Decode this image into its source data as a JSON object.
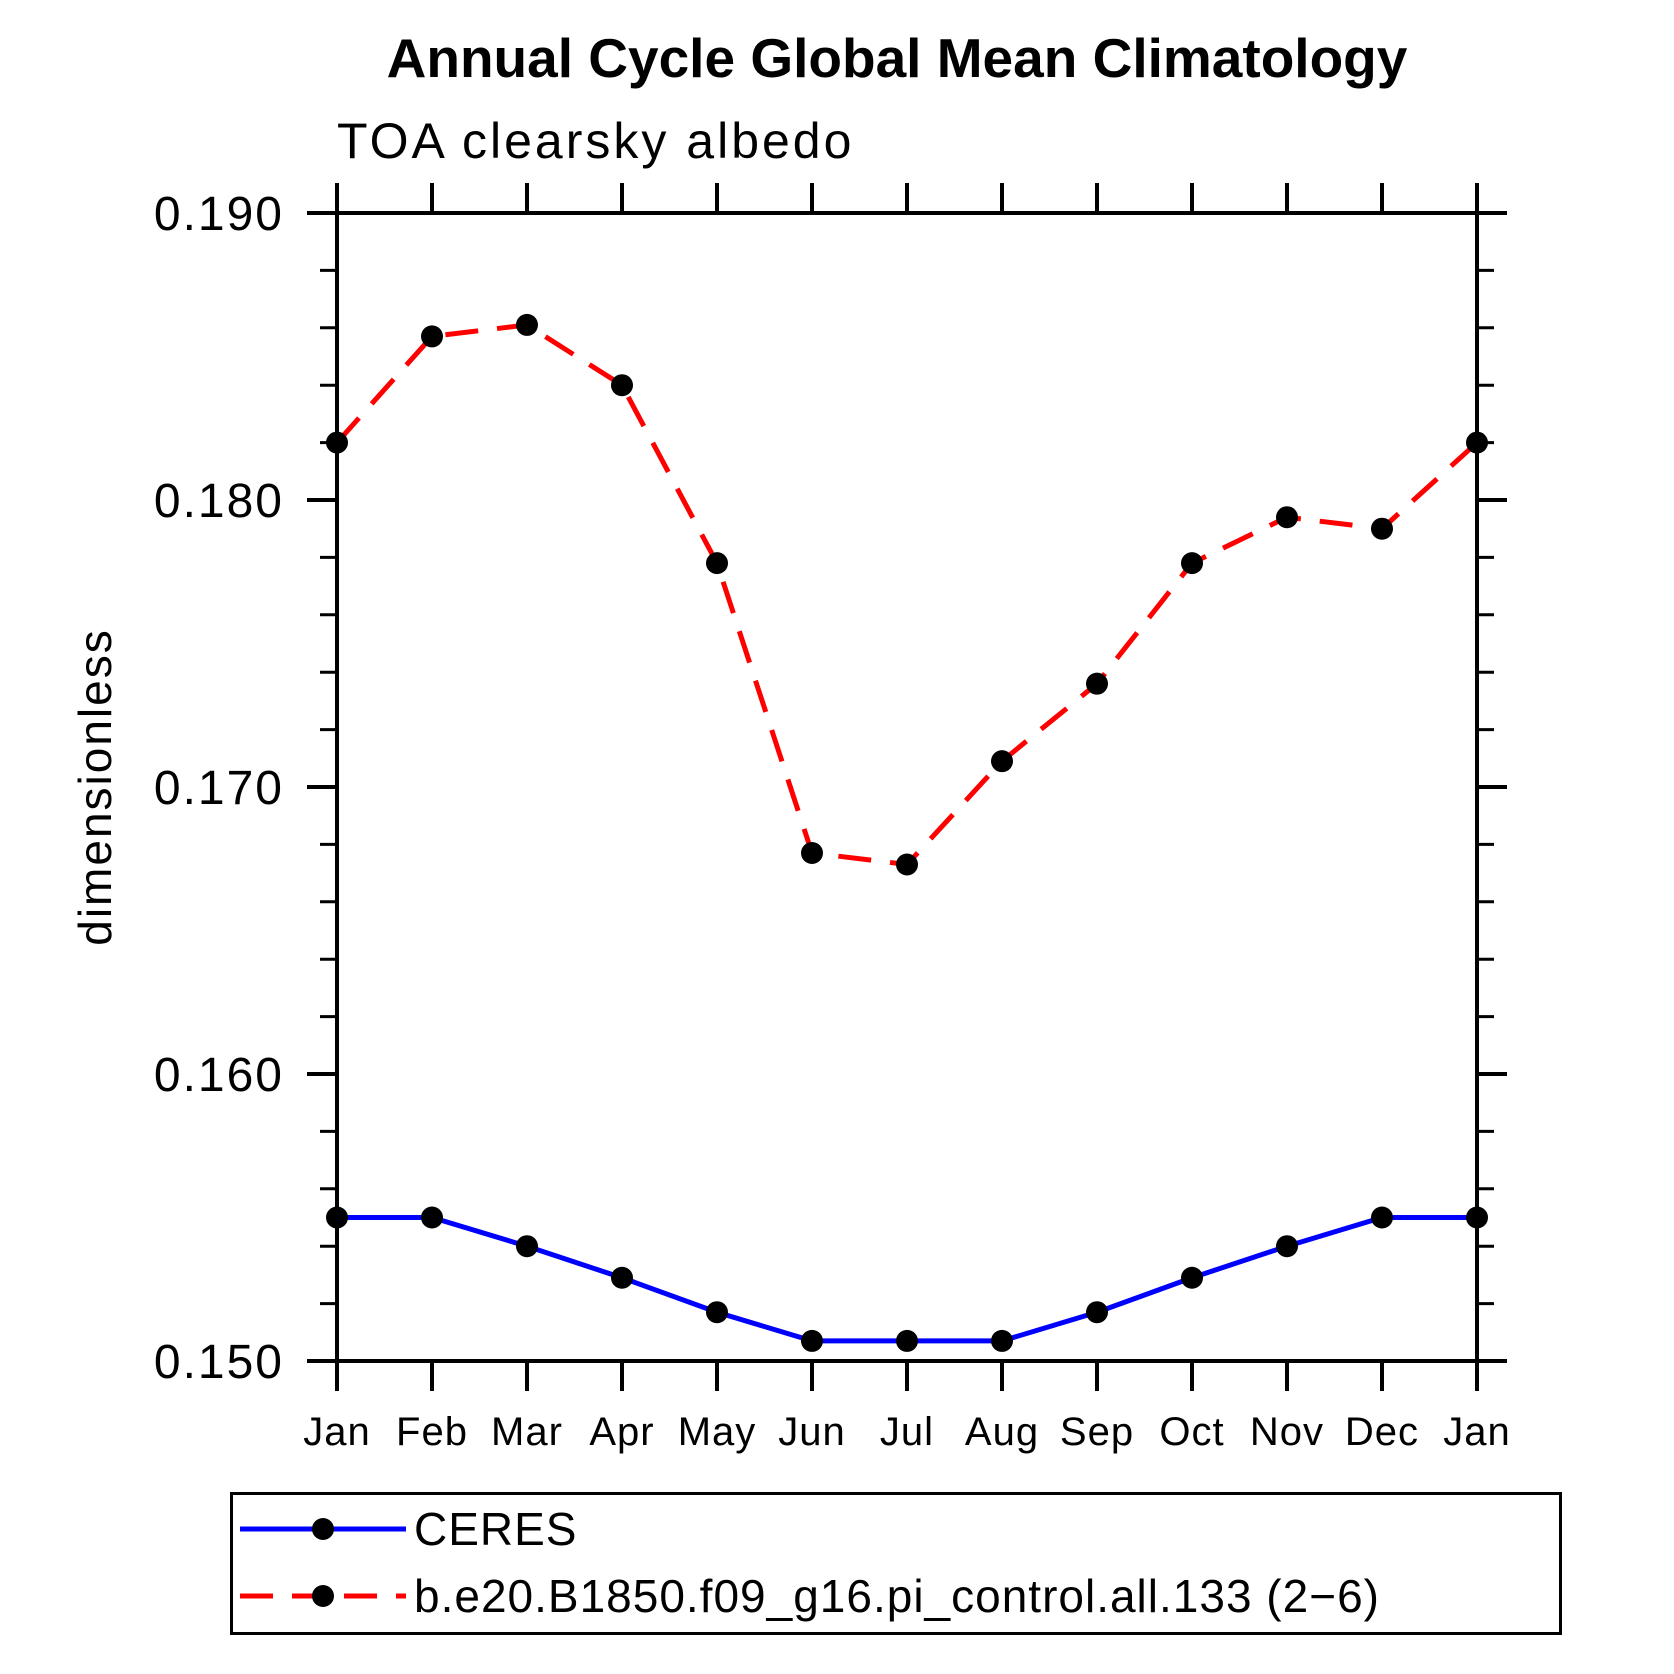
{
  "chart": {
    "title": "Annual Cycle Global Mean Climatology",
    "subtitle": "TOA clearsky albedo",
    "ylabel": "dimensionless"
  },
  "colors": {
    "axis": "#000000",
    "marker": "#000000",
    "ceres_line": "#0000ff",
    "model_line": "#ff0000",
    "background": "#ffffff"
  },
  "chart_data": {
    "type": "line",
    "title": "Annual Cycle Global Mean Climatology",
    "subtitle": "TOA clearsky albedo",
    "xlabel": "",
    "ylabel": "dimensionless",
    "categories": [
      "Jan",
      "Feb",
      "Mar",
      "Apr",
      "May",
      "Jun",
      "Jul",
      "Aug",
      "Sep",
      "Oct",
      "Nov",
      "Dec",
      "Jan"
    ],
    "ylim": [
      0.15,
      0.19
    ],
    "yticks": [
      0.15,
      0.16,
      0.17,
      0.18,
      0.19
    ],
    "ytick_labels": [
      "0.150",
      "0.160",
      "0.170",
      "0.180",
      "0.190"
    ],
    "ytick_minor_step": 0.002,
    "grid": false,
    "legend_position": "bottom",
    "series": [
      {
        "name": "CERES",
        "color": "#0000ff",
        "style": "solid",
        "marker": "circle",
        "marker_color": "#000000",
        "values": [
          0.155,
          0.155,
          0.154,
          0.1529,
          0.1517,
          0.1507,
          0.1507,
          0.1507,
          0.1517,
          0.1529,
          0.154,
          0.155,
          0.155
        ]
      },
      {
        "name": "b.e20.B1850.f09_g16.pi_control.all.133 (2−6)",
        "color": "#ff0000",
        "style": "dashed",
        "marker": "circle",
        "marker_color": "#000000",
        "values": [
          0.182,
          0.1857,
          0.1861,
          0.184,
          0.1778,
          0.1677,
          0.1673,
          0.1709,
          0.1736,
          0.1778,
          0.1794,
          0.179,
          0.182
        ]
      }
    ]
  }
}
